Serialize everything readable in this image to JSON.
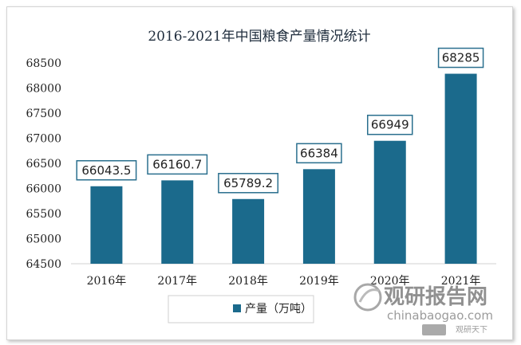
{
  "chart_data": {
    "type": "bar",
    "title": "2016-2021年中国粮食产量情况统计",
    "categories": [
      "2016年",
      "2017年",
      "2018年",
      "2019年",
      "2020年",
      "2021年"
    ],
    "series": [
      {
        "name": "产量（万吨）",
        "values": [
          66043.5,
          66160.7,
          65789.2,
          66384,
          66949,
          68285
        ],
        "labels": [
          "66043.5",
          "66160.7",
          "65789.2",
          "66384",
          "66949",
          "68285"
        ],
        "color": "#1b6a8c"
      }
    ],
    "yticks": [
      "64500",
      "65000",
      "65500",
      "66000",
      "66500",
      "67000",
      "67500",
      "68000",
      "68500"
    ],
    "ylim": [
      64500,
      68500
    ],
    "xlabel": "",
    "ylabel": "",
    "grid": false,
    "legend_position": "bottom"
  },
  "watermark": {
    "title": "观研报告网",
    "subtitle": "chinabaogao.com",
    "small": "观研天下"
  }
}
